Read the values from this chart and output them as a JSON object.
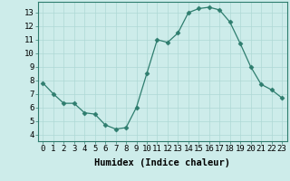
{
  "x": [
    0,
    1,
    2,
    3,
    4,
    5,
    6,
    7,
    8,
    9,
    10,
    11,
    12,
    13,
    14,
    15,
    16,
    17,
    18,
    19,
    20,
    21,
    22,
    23
  ],
  "y": [
    7.8,
    7.0,
    6.3,
    6.3,
    5.6,
    5.5,
    4.7,
    4.4,
    4.5,
    6.0,
    8.5,
    11.0,
    10.8,
    11.5,
    13.0,
    13.3,
    13.4,
    13.2,
    12.3,
    10.7,
    9.0,
    7.7,
    7.3,
    6.7
  ],
  "line_color": "#2e7d6e",
  "marker": "D",
  "marker_size": 2.5,
  "bg_color": "#cdecea",
  "grid_color": "#aed8d5",
  "xlabel": "Humidex (Indice chaleur)",
  "xlim": [
    -0.5,
    23.5
  ],
  "ylim": [
    3.5,
    13.8
  ],
  "yticks": [
    4,
    5,
    6,
    7,
    8,
    9,
    10,
    11,
    12,
    13
  ],
  "xticks": [
    0,
    1,
    2,
    3,
    4,
    5,
    6,
    7,
    8,
    9,
    10,
    11,
    12,
    13,
    14,
    15,
    16,
    17,
    18,
    19,
    20,
    21,
    22,
    23
  ],
  "xlabel_fontsize": 7.5,
  "tick_fontsize": 6.5
}
